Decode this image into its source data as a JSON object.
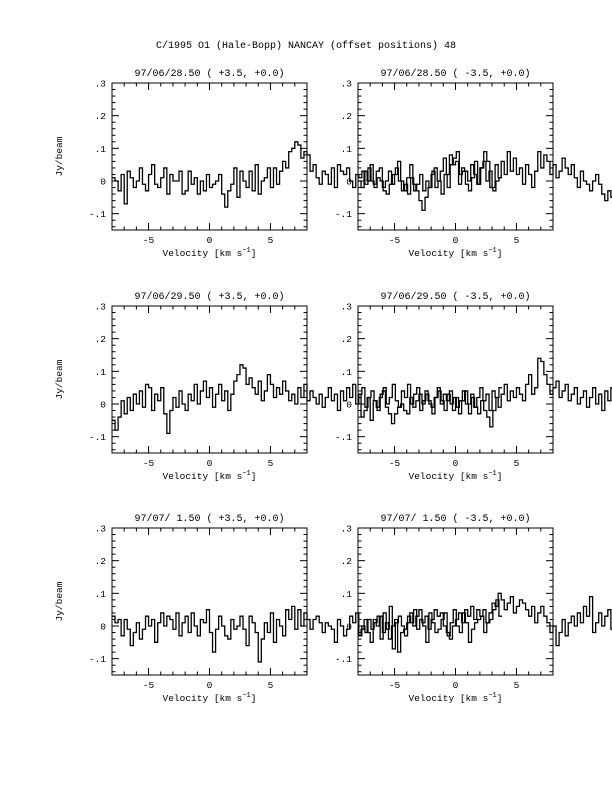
{
  "figure": {
    "title": "C/1995 O1 (Hale-Bopp)   NANCAY     (offset positions)   48"
  },
  "chart_data": [
    {
      "type": "line",
      "title": "97/06/28.50  ( +3.5, +0.0)",
      "xlabel": "Velocity [km s⁻¹]",
      "ylabel": "Jy/beam",
      "xlim": [
        -8,
        8
      ],
      "ylim": [
        -0.15,
        0.3
      ],
      "xticks": [
        -5,
        0,
        5
      ],
      "yticks": [
        -0.1,
        0,
        0.1,
        0.2,
        0.3
      ],
      "x_step": 0.25,
      "x_start": -7.875,
      "series": [
        {
          "values": [
            0.01,
            0.0,
            -0.03,
            0.02,
            -0.07,
            0.03,
            0.01,
            -0.02,
            0.0,
            0.04,
            -0.01,
            -0.03,
            0.02,
            0.05,
            -0.01,
            -0.02,
            0.01,
            0.04,
            -0.04,
            0.02,
            0.0,
            0.0,
            0.03,
            -0.04,
            -0.03,
            0.03,
            -0.01,
            0.01,
            -0.04,
            0.0,
            -0.03,
            0.02,
            -0.02,
            -0.01,
            0.0,
            0.02,
            -0.04,
            -0.08,
            -0.03,
            -0.01,
            0.04,
            -0.05,
            0.03,
            0.0,
            -0.02,
            0.03,
            -0.03,
            0.05,
            -0.04,
            0.0,
            0.01,
            0.04,
            -0.02,
            0.04,
            -0.01,
            0.03,
            0.06,
            0.04,
            0.09,
            0.1,
            0.12,
            0.11,
            0.07,
            0.09,
            0.08,
            0.03,
            0.05,
            0.01,
            -0.01,
            0.03,
            0.02,
            -0.01,
            0.04,
            -0.02,
            0.05,
            0.03,
            0.02,
            0.04,
            0.0,
            -0.02,
            0.02,
            0.01,
            0.03,
            -0.01,
            0.04,
            0.0,
            -0.02,
            0.01,
            0.0,
            -0.03,
            -0.04,
            -0.01,
            0.02,
            0.04,
            0.0,
            -0.03,
            -0.01,
            -0.04,
            0.01,
            -0.03,
            -0.01,
            0.02,
            -0.03,
            0.0,
            -0.02,
            0.03,
            -0.02,
            0.0,
            -0.04,
            0.02,
            -0.02,
            0.05,
            0.07,
            0.09,
            0.02,
            0.03,
            -0.01,
            -0.03,
            0.01,
            0.06,
            -0.01,
            0.04,
            0.09,
            0.06,
            -0.02,
            -0.03,
            0.0,
            0.01
          ]
        }
      ]
    },
    {
      "type": "line",
      "title": "97/06/28.50  ( -3.5, +0.0)",
      "xlabel": "Velocity [km s⁻¹]",
      "ylabel": "",
      "xlim": [
        -8,
        8
      ],
      "ylim": [
        -0.15,
        0.3
      ],
      "xticks": [
        -5,
        0,
        5
      ],
      "yticks": [
        -0.1,
        0,
        0.1,
        0.2,
        0.3
      ],
      "x_step": 0.25,
      "x_start": -7.875,
      "series": [
        {
          "values": [
            0.0,
            -0.02,
            0.03,
            0.0,
            0.05,
            -0.01,
            0.03,
            0.04,
            -0.02,
            0.0,
            0.03,
            -0.01,
            0.02,
            0.06,
            0.0,
            -0.03,
            0.01,
            0.05,
            -0.01,
            -0.03,
            -0.06,
            -0.09,
            -0.05,
            -0.02,
            0.02,
            0.04,
            0.0,
            0.03,
            0.07,
            0.02,
            0.08,
            0.05,
            0.06,
            -0.01,
            0.04,
            0.03,
            0.0,
            0.05,
            0.02,
            -0.01,
            0.04,
            0.06,
            0.0,
            0.03,
            -0.02,
            0.05,
            0.01,
            0.06,
            0.02,
            0.09,
            0.03,
            0.07,
            0.02,
            0.04,
            -0.01,
            0.05,
            0.02,
            -0.02,
            0.03,
            0.09,
            0.04,
            0.08,
            0.06,
            0.02,
            0.05,
            0.01,
            0.03,
            0.07,
            0.04,
            0.02,
            0.05,
            0.01,
            -0.02,
            0.03,
            0.0,
            -0.01,
            -0.03,
            0.0,
            0.02,
            -0.01,
            -0.04,
            -0.06,
            -0.03,
            -0.05,
            -0.07,
            -0.04,
            -0.06,
            -0.08,
            -0.04,
            -0.02,
            0.02,
            0.01,
            -0.01,
            0.02,
            0.04,
            0.0,
            0.05,
            0.02,
            0.06,
            0.04,
            0.07,
            0.02,
            0.05,
            -0.01,
            0.03,
            0.01,
            0.05,
            0.0,
            0.03,
            -0.02,
            0.01,
            0.04,
            -0.03,
            0.0,
            0.02,
            -0.01,
            0.01,
            -0.03,
            -0.05,
            0.02,
            0.01,
            -0.02,
            -0.04,
            0.03,
            0.05,
            0.01,
            0.06,
            0.03
          ]
        }
      ]
    },
    {
      "type": "line",
      "title": "97/06/29.50  ( +3.5, +0.0)",
      "xlabel": "Velocity [km s⁻¹]",
      "ylabel": "Jy/beam",
      "xlim": [
        -8,
        8
      ],
      "ylim": [
        -0.15,
        0.3
      ],
      "xticks": [
        -5,
        0,
        5
      ],
      "yticks": [
        -0.1,
        0,
        0.1,
        0.2,
        0.3
      ],
      "x_step": 0.25,
      "x_start": -7.875,
      "series": [
        {
          "values": [
            -0.05,
            -0.08,
            -0.04,
            0.01,
            -0.03,
            0.02,
            -0.02,
            0.03,
            0.0,
            0.04,
            -0.01,
            0.06,
            0.05,
            -0.02,
            0.03,
            0.01,
            0.05,
            -0.03,
            -0.09,
            -0.02,
            0.02,
            -0.01,
            0.04,
            0.0,
            -0.02,
            0.03,
            0.01,
            0.06,
            0.0,
            0.04,
            0.07,
            0.02,
            0.05,
            -0.01,
            0.03,
            0.06,
            0.01,
            0.04,
            -0.02,
            0.03,
            0.07,
            0.09,
            0.12,
            0.11,
            0.06,
            0.08,
            0.05,
            0.03,
            0.07,
            0.01,
            0.04,
            0.09,
            0.06,
            0.02,
            0.05,
            0.03,
            0.07,
            0.04,
            0.01,
            0.03,
            0.0,
            0.05,
            0.02,
            0.06,
            0.01,
            0.04,
            0.02,
            0.0,
            0.03,
            -0.01,
            0.02,
            0.05,
            0.01,
            0.03,
            -0.02,
            0.04,
            0.01,
            0.05,
            0.02,
            0.06,
            0.0,
            0.03,
            0.05,
            -0.01,
            0.02,
            0.04,
            0.01,
            -0.02,
            0.03,
            0.05,
            0.0,
            0.02,
            0.06,
            0.01,
            -0.01,
            0.04,
            0.02,
            0.06,
            0.0,
            0.03,
            0.05,
            -0.02,
            0.01,
            0.03,
            0.0,
            -0.03,
            0.02,
            0.04,
            0.01,
            -0.02,
            0.03,
            0.0,
            0.02,
            -0.01,
            0.01,
            0.04,
            0.0,
            -0.03,
            0.02,
            -0.01,
            -0.03,
            0.01,
            -0.02,
            -0.04,
            -0.07,
            -0.02,
            0.02,
            0.05
          ]
        }
      ]
    },
    {
      "type": "line",
      "title": "97/06/29.50  ( -3.5, +0.0)",
      "xlabel": "Velocity [km s⁻¹]",
      "ylabel": "",
      "xlim": [
        -8,
        8
      ],
      "ylim": [
        -0.15,
        0.3
      ],
      "xticks": [
        -5,
        0,
        5
      ],
      "yticks": [
        -0.1,
        0,
        0.1,
        0.2,
        0.3
      ],
      "x_step": 0.25,
      "x_start": -7.875,
      "series": [
        {
          "values": [
            0.03,
            -0.04,
            -0.02,
            0.02,
            -0.05,
            0.01,
            -0.01,
            0.02,
            0.04,
            -0.01,
            -0.03,
            -0.06,
            -0.03,
            -0.01,
            0.0,
            -0.02,
            -0.03,
            0.02,
            -0.01,
            0.01,
            0.03,
            0.0,
            0.04,
            0.01,
            -0.01,
            0.02,
            0.05,
            0.0,
            0.03,
            0.01,
            0.04,
            -0.02,
            0.02,
            -0.03,
            0.01,
            0.04,
            0.0,
            0.03,
            -0.01,
            0.02,
            0.05,
            0.01,
            0.03,
            -0.02,
            0.04,
            0.02,
            -0.01,
            0.03,
            0.06,
            0.01,
            0.04,
            0.02,
            0.05,
            0.03,
            0.01,
            0.06,
            0.09,
            0.03,
            0.05,
            0.14,
            0.13,
            0.09,
            0.06,
            0.03,
            0.05,
            0.07,
            0.02,
            0.04,
            0.06,
            0.01,
            0.03,
            0.05,
            0.0,
            0.02,
            0.04,
            -0.01,
            0.02,
            0.05,
            0.0,
            0.03,
            -0.02,
            0.04,
            0.01,
            0.05,
            0.02,
            0.06,
            -0.01,
            0.03,
            0.01,
            0.05,
            0.02,
            0.0,
            0.04,
            -0.02,
            0.01,
            0.06,
            0.02,
            -0.01,
            0.04,
            0.0,
            0.03,
            0.05,
            0.01,
            -0.03,
            0.02,
            0.04,
            0.0,
            0.05,
            0.02,
            -0.02,
            0.03,
            0.05,
            0.01,
            0.03,
            0.0,
            0.04,
            0.01,
            0.03,
            -0.01,
            0.02,
            0.04,
            0.0,
            -0.02,
            0.01,
            0.02,
            -0.03,
            -0.01,
            0.01
          ]
        }
      ]
    },
    {
      "type": "line",
      "title": "97/07/ 1.50  ( +3.5, +0.0)",
      "xlabel": "Velocity [km s⁻¹]",
      "ylabel": "Jy/beam",
      "xlim": [
        -8,
        8
      ],
      "ylim": [
        -0.15,
        0.3
      ],
      "xticks": [
        -5,
        0,
        5
      ],
      "yticks": [
        -0.1,
        0,
        0.1,
        0.2,
        0.3
      ],
      "x_step": 0.25,
      "x_start": -7.875,
      "series": [
        {
          "values": [
            0.03,
            0.01,
            0.02,
            -0.03,
            0.02,
            -0.01,
            -0.06,
            -0.02,
            0.01,
            -0.04,
            -0.01,
            0.03,
            0.0,
            0.02,
            -0.05,
            0.01,
            0.04,
            0.0,
            0.03,
            0.02,
            -0.01,
            0.04,
            -0.03,
            0.01,
            0.03,
            -0.02,
            0.04,
            0.0,
            -0.03,
            0.02,
            0.01,
            0.05,
            -0.02,
            -0.08,
            -0.01,
            0.03,
            0.0,
            -0.03,
            -0.04,
            0.02,
            -0.01,
            0.0,
            0.03,
            -0.01,
            -0.06,
            0.03,
            0.01,
            -0.02,
            -0.11,
            -0.04,
            0.01,
            -0.02,
            0.04,
            -0.05,
            0.02,
            0.0,
            -0.03,
            0.05,
            0.02,
            0.06,
            -0.01,
            0.05,
            0.0,
            0.04,
            0.02,
            -0.01,
            0.02,
            0.03,
            0.01,
            -0.02,
            0.01,
            0.0,
            -0.01,
            -0.05,
            0.02,
            0.0,
            -0.03,
            -0.01,
            0.03,
            0.01,
            0.04,
            -0.03,
            0.0,
            -0.02,
            0.02,
            -0.01,
            0.01,
            0.03,
            -0.04,
            0.04,
            -0.01,
            0.06,
            -0.07,
            0.01,
            0.03,
            0.0,
            -0.03,
            0.03,
            0.01,
            0.05,
            -0.01,
            0.02,
            0.0,
            -0.05,
            0.04,
            0.01,
            -0.02,
            -0.01,
            0.02,
            0.04,
            -0.03,
            0.01,
            0.05,
            0.0,
            -0.02,
            0.04,
            0.01,
            -0.05,
            -0.01,
            0.01,
            0.02,
            0.03,
            -0.02,
            0.01,
            0.02,
            0.05,
            0.08,
            0.03
          ]
        }
      ]
    },
    {
      "type": "line",
      "title": "97/07/ 1.50  ( -3.5, +0.0)",
      "xlabel": "Velocity [km s⁻¹]",
      "ylabel": "",
      "xlim": [
        -8,
        8
      ],
      "ylim": [
        -0.15,
        0.3
      ],
      "xticks": [
        -5,
        0,
        5
      ],
      "yticks": [
        -0.1,
        0,
        0.1,
        0.2,
        0.3
      ],
      "x_step": 0.25,
      "x_start": -7.875,
      "series": [
        {
          "values": [
            -0.03,
            -0.01,
            0.02,
            -0.02,
            -0.05,
            0.02,
            0.0,
            0.03,
            -0.02,
            0.01,
            -0.04,
            0.0,
            0.02,
            -0.08,
            -0.02,
            -0.01,
            0.01,
            0.04,
            0.0,
            0.03,
            0.05,
            0.01,
            0.03,
            -0.01,
            0.02,
            0.05,
            0.03,
            0.04,
            0.0,
            -0.02,
            -0.04,
            0.0,
            0.02,
            0.04,
            0.01,
            0.05,
            0.03,
            0.06,
            0.02,
            0.05,
            0.03,
            0.05,
            0.01,
            0.04,
            0.07,
            0.06,
            0.1,
            0.08,
            0.05,
            0.07,
            0.09,
            0.04,
            0.06,
            0.08,
            0.07,
            0.05,
            0.03,
            0.06,
            0.01,
            0.04,
            0.06,
            0.03,
            0.01,
            -0.02,
            0.0,
            -0.06,
            -0.02,
            0.02,
            -0.03,
            0.01,
            0.03,
            0.0,
            0.04,
            0.01,
            0.06,
            0.03,
            0.09,
            -0.02,
            0.01,
            0.04,
            0.0,
            0.03,
            0.05,
            -0.01,
            0.02,
            0.03,
            -0.05,
            0.01,
            0.04,
            0.0,
            0.02,
            0.05,
            0.01,
            -0.02,
            0.03,
            0.0,
            0.04,
            0.01,
            -0.01,
            0.02,
            0.05,
            0.01,
            0.03,
            0.0,
            -0.03,
            0.02,
            0.04,
            0.01,
            -0.02,
            0.03,
            0.01,
            0.05,
            0.0,
            0.03,
            0.01,
            -0.04,
            0.02,
            0.0,
            0.04,
            -0.03,
            0.01,
            -0.02,
            0.03,
            0.0,
            -0.05,
            0.02,
            0.04,
            0.01
          ]
        }
      ]
    }
  ]
}
